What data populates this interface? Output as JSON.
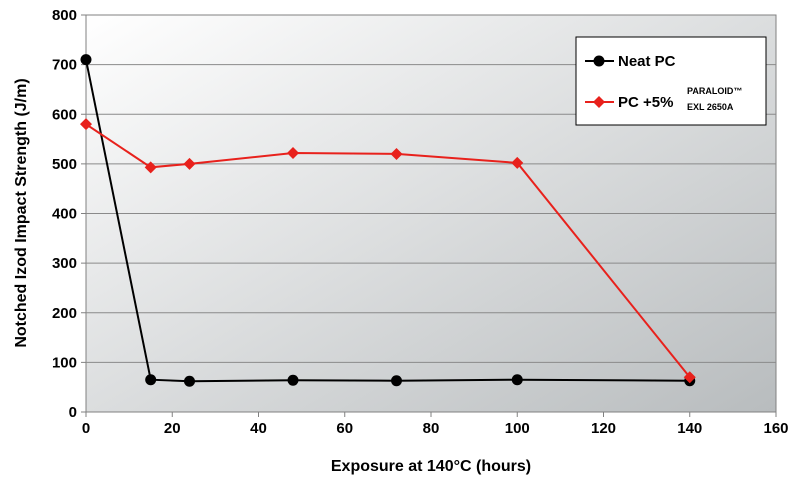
{
  "chart_data": {
    "type": "line",
    "title": "",
    "xlabel": "Exposure at 140°C (hours)",
    "ylabel": "Notched Izod Impact Strength (J/m)",
    "xlim": [
      0,
      160
    ],
    "ylim": [
      0,
      800
    ],
    "xticks": [
      0,
      20,
      40,
      60,
      80,
      100,
      120,
      140,
      160
    ],
    "yticks": [
      0,
      100,
      200,
      300,
      400,
      500,
      600,
      700,
      800
    ],
    "grid": "horizontal",
    "legend_position": "top-right",
    "background": "gradient gray",
    "series": [
      {
        "name": "Neat PC",
        "color": "#000000",
        "marker": "circle",
        "x": [
          0,
          15,
          24,
          48,
          72,
          100,
          140
        ],
        "y": [
          710,
          65,
          62,
          64,
          63,
          65,
          63
        ]
      },
      {
        "name": "PC +5%",
        "name_superscript": "PARALOID™",
        "name_subscript": "EXL 2650A",
        "color": "#e8211c",
        "marker": "diamond",
        "x": [
          0,
          15,
          24,
          48,
          72,
          100,
          140
        ],
        "y": [
          580,
          493,
          500,
          522,
          520,
          502,
          70
        ]
      }
    ]
  }
}
